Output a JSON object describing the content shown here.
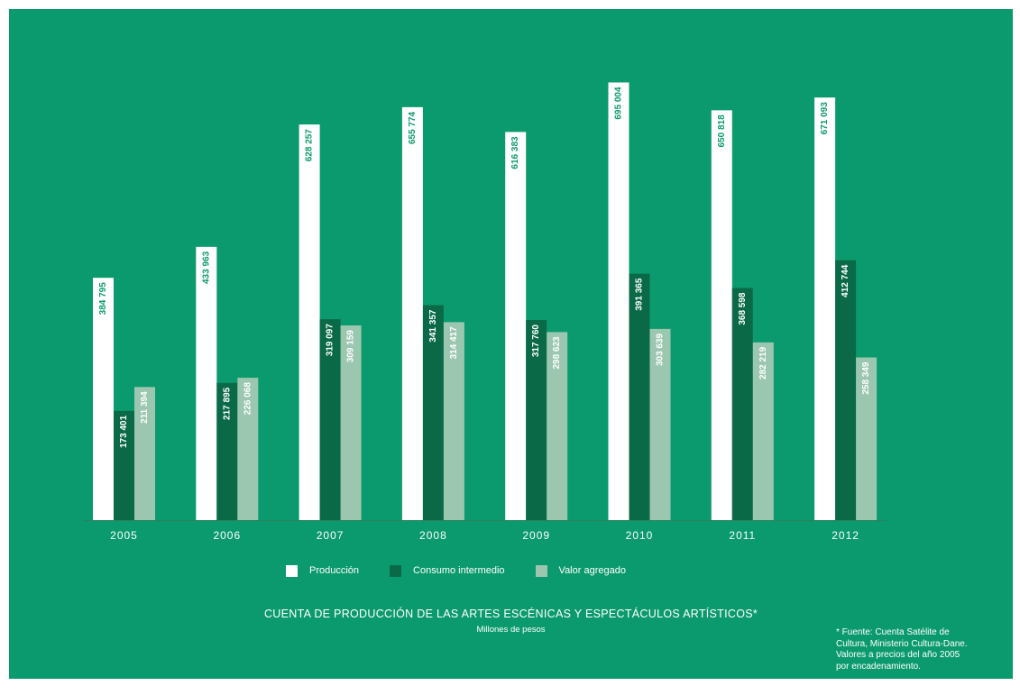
{
  "chart_data": {
    "type": "bar",
    "categories": [
      "2005",
      "2006",
      "2007",
      "2008",
      "2009",
      "2010",
      "2011",
      "2012"
    ],
    "series": [
      {
        "name": "Producción",
        "color": "#ffffff",
        "label_color": "#0b9a6d",
        "values": [
          384795,
          433963,
          628257,
          655774,
          616383,
          695004,
          650818,
          671093
        ],
        "labels": [
          "384 795",
          "433 963",
          "628 257",
          "655 774",
          "616 383",
          "695 004",
          "650 818",
          "671 093"
        ]
      },
      {
        "name": "Consumo intermedio",
        "color": "#0a6a48",
        "label_color": "#ffffff",
        "values": [
          173401,
          217895,
          319097,
          341357,
          317760,
          391365,
          368598,
          412744
        ],
        "labels": [
          "173 401",
          "217 895",
          "319 097",
          "341 357",
          "317 760",
          "391 365",
          "368 598",
          "412 744"
        ]
      },
      {
        "name": "Valor agregado",
        "color": "#9bc7b0",
        "label_color": "#ffffff",
        "values": [
          211394,
          226068,
          309159,
          314417,
          298623,
          303639,
          282219,
          258349
        ],
        "labels": [
          "211 394",
          "226 068",
          "309 159",
          "314 417",
          "298 623",
          "303 639",
          "282 219",
          "258 349"
        ]
      }
    ],
    "title": "CUENTA DE PRODUCCIÓN DE LAS ARTES ESCÉNICAS Y ESPECTÁCULOS ARTÍSTICOS*",
    "subtitle": "Millones de pesos",
    "footnote": "*    Fuente: Cuenta Satélite de\nCultura, Ministerio Cultura-Dane.\nValores a precios del año 2005\npor encadenamiento.",
    "ylim": [
      0,
      700000
    ],
    "grid": false,
    "legend_position": "bottom"
  }
}
